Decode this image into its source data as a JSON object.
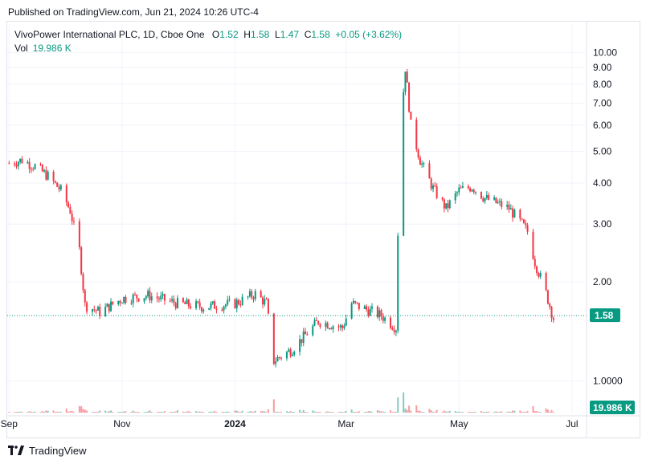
{
  "header": {
    "published": "Published on TradingView.com, Jun 21, 2024 10:26 UTC-4"
  },
  "legend": {
    "symbol": "VivoPower International PLC, 1D, Cboe One",
    "o_label": "O",
    "o": "1.52",
    "h_label": "H",
    "h": "1.58",
    "l_label": "L",
    "l": "1.47",
    "c_label": "C",
    "c": "1.58",
    "change": "+0.05 (+3.62%)",
    "vol_label": "Vol",
    "vol": "19.986 K"
  },
  "footer": {
    "brand": "TradingView"
  },
  "colors": {
    "up": "#089981",
    "down": "#f23645",
    "grid": "#f0f3fa",
    "badge_price": "#089981",
    "badge_vol": "#089981"
  },
  "chart_data": {
    "type": "candlestick",
    "scale": "log",
    "y_ticks": [
      "1.0000",
      "2.00",
      "3.00",
      "4.00",
      "5.00",
      "6.00",
      "7.00",
      "8.00",
      "9.00",
      "10.00"
    ],
    "y_tick_values": [
      1,
      2,
      3,
      4,
      5,
      6,
      7,
      8,
      9,
      10
    ],
    "x_ticks": [
      {
        "label": "Sep",
        "date": "2023-09-01",
        "bold": false
      },
      {
        "label": "Nov",
        "date": "2023-11-01",
        "bold": false
      },
      {
        "label": "2024",
        "date": "2024-01-01",
        "bold": true
      },
      {
        "label": "Mar",
        "date": "2024-03-01",
        "bold": false
      },
      {
        "label": "May",
        "date": "2024-05-01",
        "bold": false
      },
      {
        "label": "Jul",
        "date": "2024-07-01",
        "bold": false
      }
    ],
    "x_range": [
      "2023-08-31",
      "2024-07-08"
    ],
    "ylim": [
      0.8,
      10.9
    ],
    "last_price": "1.58",
    "last_price_value": 1.58,
    "last_volume": "19.986 K",
    "grid": true,
    "price_path": [
      [
        "2023-09-01",
        4.6
      ],
      [
        "2023-09-08",
        4.7
      ],
      [
        "2023-09-15",
        4.5
      ],
      [
        "2023-09-22",
        4.2
      ],
      [
        "2023-09-29",
        3.8
      ],
      [
        "2023-10-04",
        3.3
      ],
      [
        "2023-10-09",
        2.5
      ],
      [
        "2023-10-12",
        1.7
      ],
      [
        "2023-10-20",
        1.62
      ],
      [
        "2023-11-01",
        1.78
      ],
      [
        "2023-11-15",
        1.82
      ],
      [
        "2023-12-01",
        1.72
      ],
      [
        "2023-12-15",
        1.68
      ],
      [
        "2024-01-01",
        1.72
      ],
      [
        "2024-01-12",
        1.84
      ],
      [
        "2024-01-18",
        1.72
      ],
      [
        "2024-01-22",
        1.15
      ],
      [
        "2024-02-01",
        1.25
      ],
      [
        "2024-02-15",
        1.52
      ],
      [
        "2024-02-28",
        1.45
      ],
      [
        "2024-03-04",
        1.72
      ],
      [
        "2024-03-20",
        1.58
      ],
      [
        "2024-03-28",
        1.45
      ],
      [
        "2024-03-30",
        5.5
      ],
      [
        "2024-04-02",
        9.0
      ],
      [
        "2024-04-05",
        6.0
      ],
      [
        "2024-04-10",
        4.7
      ],
      [
        "2024-04-17",
        3.85
      ],
      [
        "2024-04-24",
        3.35
      ],
      [
        "2024-05-01",
        3.8
      ],
      [
        "2024-05-08",
        3.9
      ],
      [
        "2024-05-15",
        3.6
      ],
      [
        "2024-05-28",
        3.35
      ],
      [
        "2024-06-03",
        3.05
      ],
      [
        "2024-06-07",
        2.85
      ],
      [
        "2024-06-11",
        2.3
      ],
      [
        "2024-06-17",
        1.85
      ],
      [
        "2024-06-21",
        1.55
      ]
    ]
  }
}
